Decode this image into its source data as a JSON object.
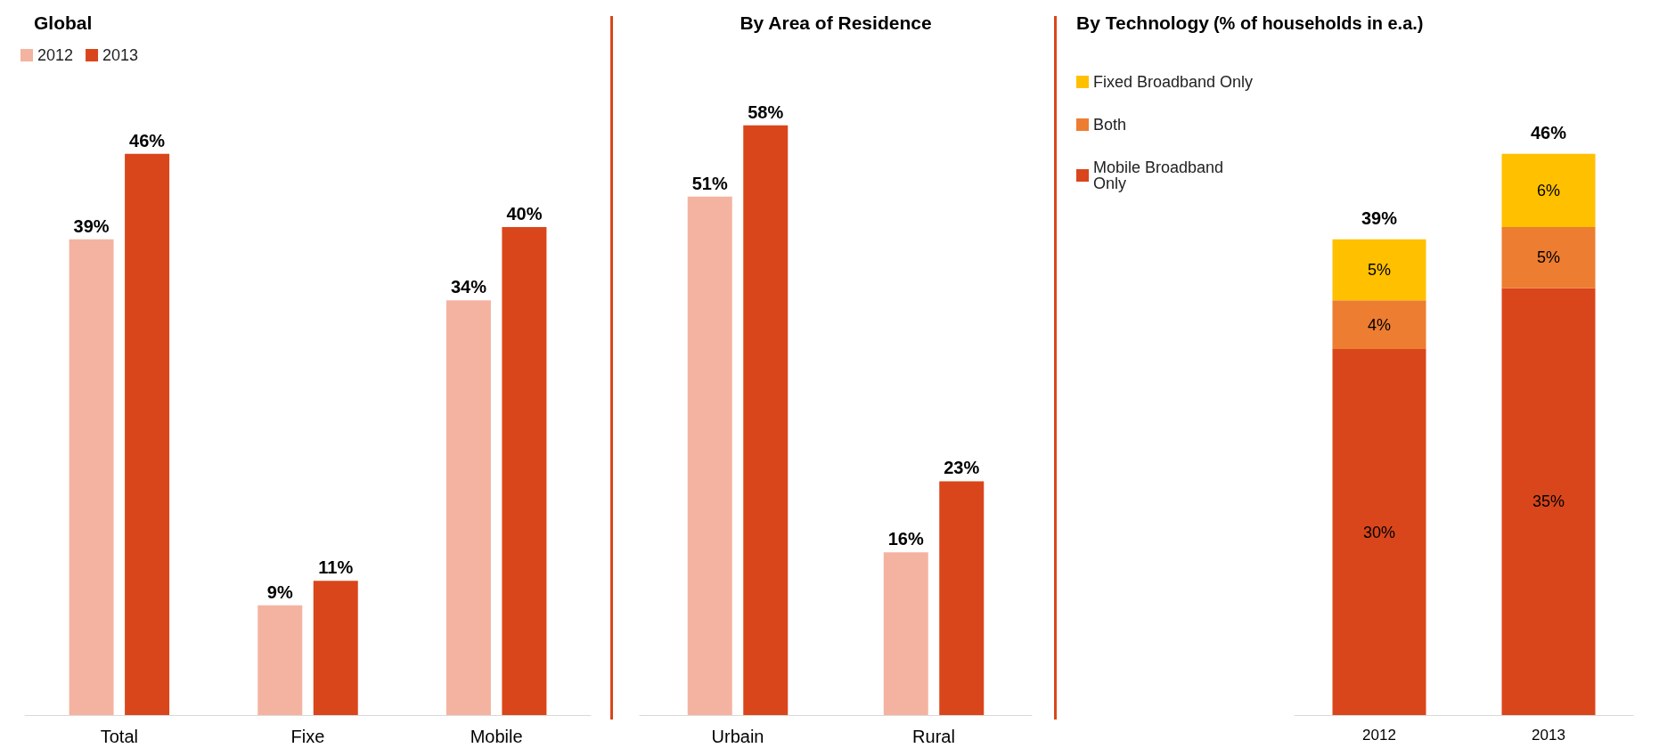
{
  "chart_data": [
    {
      "type": "bar",
      "title": "Global",
      "categories": [
        "Total",
        "Fixe",
        "Mobile"
      ],
      "legend": "top left",
      "series": [
        {
          "name": "2012",
          "color": "#f4b3a0",
          "values": [
            39,
            9,
            34
          ],
          "value_labels": [
            "39%",
            "9%",
            "34%"
          ]
        },
        {
          "name": "2013",
          "color": "#d9461b",
          "values": [
            46,
            11,
            40
          ],
          "value_labels": [
            "46%",
            "11%",
            "40%"
          ]
        }
      ]
    },
    {
      "type": "bar",
      "title": "By Area of Residence",
      "categories": [
        "Urbain",
        "Rural"
      ],
      "series": [
        {
          "color": "#f4b3a0",
          "values": [
            51,
            16
          ],
          "value_labels": [
            "51%",
            "16%"
          ]
        },
        {
          "color": "#d9461b",
          "values": [
            58,
            23
          ],
          "value_labels": [
            "58%",
            "23%"
          ]
        }
      ]
    },
    {
      "type": "bar",
      "title": "By Technology",
      "subtitle": "(% of households in e.a.)",
      "categories": [
        "2012",
        "2013"
      ],
      "stacked": true,
      "legend": "left",
      "totals": [
        "39%",
        "46%"
      ],
      "series": [
        {
          "name": "Mobile Broadband\nOnly",
          "color": "#d9461b",
          "values": [
            30,
            35
          ],
          "value_labels": [
            "30%",
            "35%"
          ]
        },
        {
          "name": "Both",
          "color": "#ed7d31",
          "values": [
            4,
            5
          ],
          "value_labels": [
            "4%",
            "5%"
          ]
        },
        {
          "name": "Fixed Broadband Only",
          "color": "#ffc000",
          "values": [
            5,
            6
          ],
          "value_labels": [
            "5%",
            "6%"
          ]
        }
      ]
    }
  ]
}
